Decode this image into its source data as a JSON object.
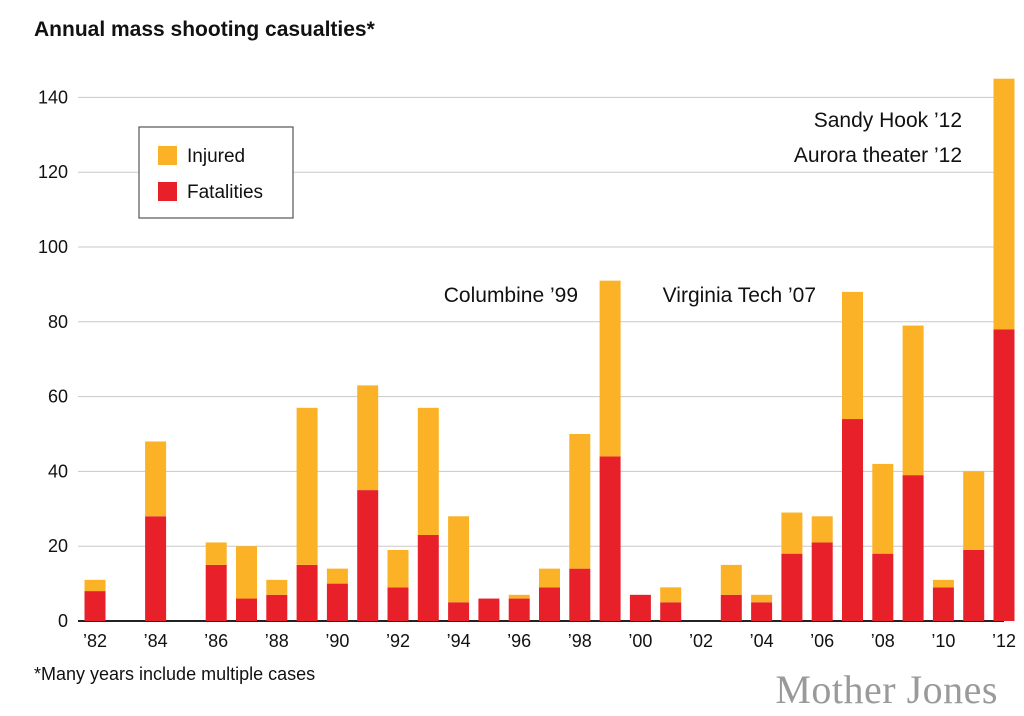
{
  "chart_data": {
    "type": "bar",
    "stacked": true,
    "title": "Annual mass shooting casualties*",
    "footnote": "*Many years include multiple cases",
    "brand": "Mother Jones",
    "years": [
      1982,
      1983,
      1984,
      1985,
      1986,
      1987,
      1988,
      1989,
      1990,
      1991,
      1992,
      1993,
      1994,
      1995,
      1996,
      1997,
      1998,
      1999,
      2000,
      2001,
      2002,
      2003,
      2004,
      2005,
      2006,
      2007,
      2008,
      2009,
      2010,
      2011,
      2012
    ],
    "series": [
      {
        "name": "Fatalities",
        "color": "#e8202a",
        "values": [
          8,
          0,
          28,
          0,
          15,
          6,
          7,
          15,
          10,
          35,
          9,
          23,
          5,
          6,
          6,
          9,
          14,
          44,
          7,
          5,
          0,
          7,
          5,
          18,
          21,
          54,
          18,
          39,
          9,
          19,
          78
        ]
      },
      {
        "name": "Injured",
        "color": "#fbb227",
        "values": [
          3,
          0,
          20,
          0,
          6,
          14,
          4,
          42,
          4,
          28,
          10,
          34,
          23,
          0,
          1,
          5,
          36,
          47,
          0,
          4,
          0,
          8,
          2,
          11,
          7,
          34,
          24,
          40,
          2,
          21,
          67
        ]
      }
    ],
    "x_tick_labels": [
      "’82",
      "’84",
      "’86",
      "’88",
      "’90",
      "’92",
      "’94",
      "’96",
      "’98",
      "’00",
      "’02",
      "’04",
      "’06",
      "’08",
      "’10",
      "’12"
    ],
    "y_ticks": [
      0,
      20,
      40,
      60,
      80,
      100,
      120,
      140
    ],
    "ylim": [
      0,
      145
    ],
    "legend": {
      "placement": "top-left",
      "entries": [
        "Injured",
        "Fatalities"
      ]
    },
    "annotations": [
      {
        "text": "Columbine ’99",
        "year": 1999
      },
      {
        "text": "Virginia Tech ’07",
        "year": 2007
      },
      {
        "text": "Sandy Hook ’12",
        "year": 2012
      },
      {
        "text": "Aurora theater ’12",
        "year": 2012
      }
    ],
    "grid": true
  }
}
